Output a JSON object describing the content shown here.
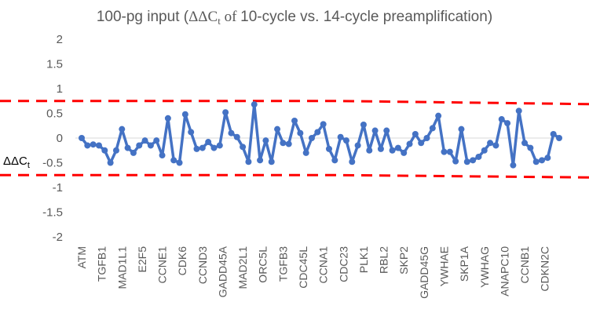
{
  "chart_data": {
    "type": "line",
    "title_main": "100-pg input (",
    "title_greek": "ΔΔC",
    "title_sub": "t",
    "title_of": " of ",
    "title_rest": "10-cycle vs. 14-cycle preamplification)",
    "ylabel_main": "ΔΔC",
    "ylabel_sub": "t",
    "ylim": [
      -2,
      2
    ],
    "yticks": [
      2,
      1.5,
      1,
      0.5,
      0,
      -0.5,
      -1,
      -1.5,
      -2
    ],
    "ytick_labels": [
      "2",
      "1.5",
      "1",
      "0.5",
      "0",
      "-0.5",
      "-1",
      "-1.5",
      "-2"
    ],
    "category_labels": [
      "ATM",
      "TGFB1",
      "MAD1L1",
      "E2F5",
      "CCNE1",
      "CDK6",
      "CCND3",
      "GADD45A",
      "MAD2L1",
      "ORC5L",
      "TGFB3",
      "CDC45L",
      "CCNA1",
      "CDC23",
      "PLK1",
      "RBL2",
      "SKP2",
      "GADD45G",
      "YWHAE",
      "SKP1A",
      "YWHAG",
      "ANAPC10",
      "CCNB1",
      "CDKN2C"
    ],
    "n_points": 84,
    "label_step": 3.5,
    "series": [
      {
        "name": "ΔΔCt",
        "color": "#4472C4",
        "values": [
          0.0,
          -0.15,
          -0.13,
          -0.15,
          -0.25,
          -0.5,
          -0.25,
          0.18,
          -0.2,
          -0.3,
          -0.15,
          -0.05,
          -0.15,
          -0.05,
          -0.35,
          0.4,
          -0.45,
          -0.5,
          0.48,
          0.12,
          -0.22,
          -0.2,
          -0.08,
          -0.2,
          -0.15,
          0.52,
          0.1,
          0.02,
          -0.18,
          -0.48,
          0.68,
          -0.45,
          -0.05,
          -0.48,
          0.18,
          -0.1,
          -0.12,
          0.35,
          0.1,
          -0.3,
          0.0,
          0.12,
          0.28,
          -0.22,
          -0.45,
          0.02,
          -0.05,
          -0.48,
          -0.15,
          0.27,
          -0.25,
          0.15,
          -0.22,
          0.15,
          -0.25,
          -0.2,
          -0.3,
          -0.12,
          0.08,
          -0.1,
          0.0,
          0.2,
          0.45,
          -0.28,
          -0.28,
          -0.47,
          0.18,
          -0.48,
          -0.45,
          -0.38,
          -0.25,
          -0.1,
          -0.15,
          0.38,
          0.3,
          -0.55,
          0.55,
          -0.1,
          -0.2,
          -0.48,
          -0.45,
          -0.4,
          0.08,
          0.0
        ]
      }
    ],
    "threshold_line_color": "#FF0000",
    "threshold_values": [
      0.75,
      -0.75
    ]
  }
}
